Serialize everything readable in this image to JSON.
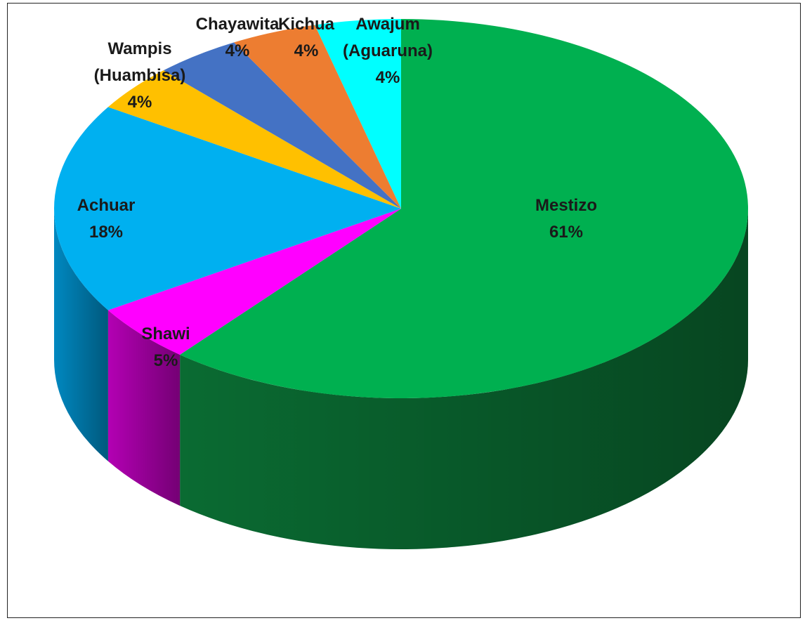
{
  "chart_data": {
    "type": "pie",
    "style": "3d",
    "title": "",
    "series": [
      {
        "slices": [
          {
            "label": "Mestizo",
            "value": 61,
            "value_label": "61%",
            "color": "#00B050",
            "side_color": "#0a6b32"
          },
          {
            "label": "Shawi",
            "value": 5,
            "value_label": "5%",
            "color": "#FF00FF",
            "side_color": "#b300b3"
          },
          {
            "label": "Achuar",
            "value": 18,
            "value_label": "18%",
            "color": "#00B0F0",
            "side_color": "#0088c0"
          },
          {
            "label": "Wampis (Huambisa)",
            "value": 4,
            "value_label": "4%",
            "color": "#FFC000",
            "side_color": "#c79600"
          },
          {
            "label": "Chayawita",
            "value": 4,
            "value_label": "4%",
            "color": "#4472C4",
            "side_color": "#2f5597"
          },
          {
            "label": "Kichua",
            "value": 4,
            "value_label": "4%",
            "color": "#ED7D31",
            "side_color": "#b85a1f"
          },
          {
            "label": "Awajum (Aguaruna)",
            "value": 4,
            "value_label": "4%",
            "color": "#00FFFF",
            "side_color": "#00bcbc"
          }
        ]
      }
    ],
    "legend": "none",
    "data_labels": "category and percent"
  }
}
